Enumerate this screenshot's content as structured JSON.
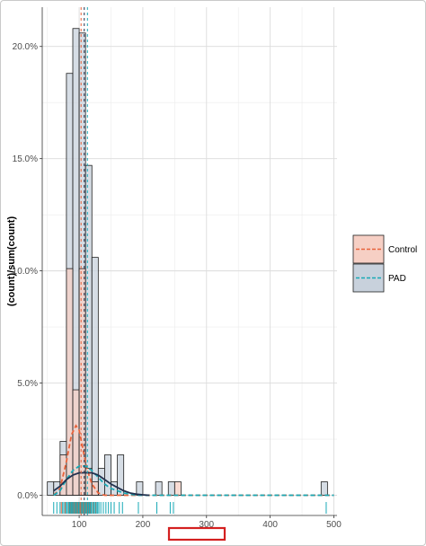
{
  "chart_data": {
    "type": "histogram",
    "ylabel": "(count)/sum(count)",
    "xlabel": "",
    "xlim": [
      42,
      505
    ],
    "ylim": [
      -0.009,
      0.2175
    ],
    "x_ticks": [
      100,
      200,
      300,
      400,
      500
    ],
    "x_tick_labels": [
      "100",
      "200",
      "300",
      "400",
      "500"
    ],
    "y_ticks": [
      0,
      0.05,
      0.1,
      0.15,
      0.2
    ],
    "y_tick_labels": [
      "0.0%",
      "5.0%",
      "10.0%",
      "15.0%",
      "20.0%"
    ],
    "grid": true,
    "legend_position": "right",
    "bin_width": 10,
    "series": [
      {
        "name": "Control",
        "fill": "#f6cfc4",
        "line_color": "#e8623a",
        "mean": 103,
        "bins": [
          {
            "x0": 70,
            "x1": 80,
            "value": 0.018
          },
          {
            "x0": 80,
            "x1": 90,
            "value": 0.101
          },
          {
            "x0": 90,
            "x1": 100,
            "value": 0.047
          },
          {
            "x0": 100,
            "x1": 110,
            "value": 0.101
          },
          {
            "x0": 110,
            "x1": 120,
            "value": 0.012
          },
          {
            "x0": 120,
            "x1": 130,
            "value": 0.006
          },
          {
            "x0": 250,
            "x1": 260,
            "value": 0.006
          }
        ],
        "density_points": [
          [
            60,
            0
          ],
          [
            70,
            0.003
          ],
          [
            80,
            0.015
          ],
          [
            88,
            0.027
          ],
          [
            95,
            0.031
          ],
          [
            100,
            0.029
          ],
          [
            105,
            0.022
          ],
          [
            112,
            0.012
          ],
          [
            120,
            0.005
          ],
          [
            130,
            0.001
          ],
          [
            140,
            0
          ],
          [
            500,
            0
          ]
        ]
      },
      {
        "name": "PAD",
        "fill": "#c8d1dc",
        "line_color": "#17a9b6",
        "mean": 113,
        "bins": [
          {
            "x0": 50,
            "x1": 60,
            "value": 0.006
          },
          {
            "x0": 60,
            "x1": 70,
            "value": 0.006
          },
          {
            "x0": 70,
            "x1": 80,
            "value": 0.024
          },
          {
            "x0": 80,
            "x1": 90,
            "value": 0.188
          },
          {
            "x0": 90,
            "x1": 100,
            "value": 0.208
          },
          {
            "x0": 100,
            "x1": 110,
            "value": 0.206
          },
          {
            "x0": 110,
            "x1": 120,
            "value": 0.147
          },
          {
            "x0": 120,
            "x1": 130,
            "value": 0.106
          },
          {
            "x0": 130,
            "x1": 140,
            "value": 0.012
          },
          {
            "x0": 140,
            "x1": 150,
            "value": 0.018
          },
          {
            "x0": 150,
            "x1": 160,
            "value": 0.006
          },
          {
            "x0": 160,
            "x1": 170,
            "value": 0.018
          },
          {
            "x0": 190,
            "x1": 200,
            "value": 0.006
          },
          {
            "x0": 220,
            "x1": 230,
            "value": 0.006
          },
          {
            "x0": 240,
            "x1": 250,
            "value": 0.006
          },
          {
            "x0": 480,
            "x1": 490,
            "value": 0.006
          }
        ],
        "density_points": [
          [
            60,
            0
          ],
          [
            70,
            0.002
          ],
          [
            80,
            0.007
          ],
          [
            90,
            0.011
          ],
          [
            100,
            0.013
          ],
          [
            110,
            0.013
          ],
          [
            120,
            0.011
          ],
          [
            130,
            0.008
          ],
          [
            140,
            0.005
          ],
          [
            150,
            0.003
          ],
          [
            170,
            0.001
          ],
          [
            190,
            0
          ],
          [
            500,
            0
          ]
        ]
      }
    ],
    "combined_density_points": [
      [
        60,
        0.002
      ],
      [
        70,
        0.004
      ],
      [
        80,
        0.007
      ],
      [
        90,
        0.009
      ],
      [
        100,
        0.01
      ],
      [
        110,
        0.01
      ],
      [
        120,
        0.01
      ],
      [
        130,
        0.009
      ],
      [
        140,
        0.007
      ],
      [
        150,
        0.005
      ],
      [
        160,
        0.0035
      ],
      [
        170,
        0.002
      ],
      [
        180,
        0.001
      ],
      [
        190,
        0.0005
      ],
      [
        200,
        0.0002
      ],
      [
        210,
        0
      ]
    ],
    "combined_density_color": "#22314f",
    "overall_mean": 108,
    "rug": {
      "Control": [
        72,
        78,
        84,
        87,
        90,
        92,
        94,
        95,
        96,
        97,
        98,
        99,
        100,
        101,
        102,
        104,
        106,
        108,
        110,
        112,
        115,
        118,
        122,
        126
      ],
      "PAD": [
        60,
        65,
        70,
        74,
        76,
        79,
        81,
        83,
        85,
        86,
        88,
        89,
        91,
        93,
        95,
        97,
        99,
        100,
        103,
        105,
        107,
        109,
        111,
        113,
        114,
        116,
        117,
        119,
        121,
        123,
        125,
        127,
        129,
        131,
        134,
        138,
        142,
        146,
        150,
        155,
        163,
        168,
        193,
        222,
        243,
        248,
        488
      ]
    }
  },
  "legend": {
    "items": [
      {
        "label": "Control",
        "fill": "#f6cfc4",
        "line_color": "#e8623a"
      },
      {
        "label": "PAD",
        "fill": "#c8d1dc",
        "line_color": "#17a9b6"
      }
    ]
  },
  "annotation_box": {
    "color": "#d42020"
  }
}
